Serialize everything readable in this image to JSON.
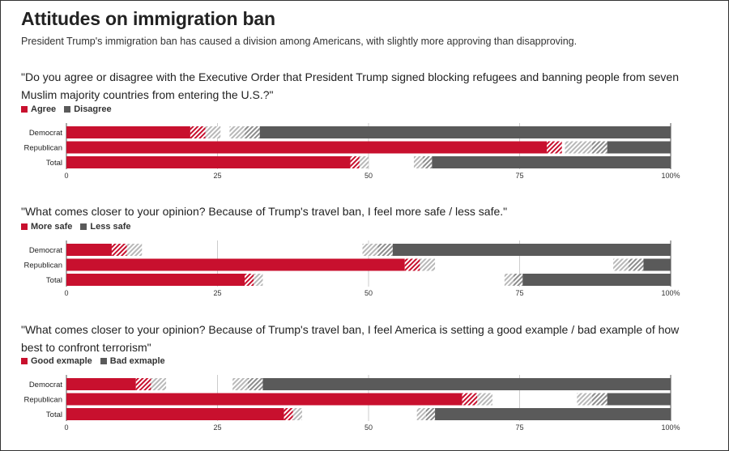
{
  "title": "Attitudes on immigration ban",
  "subtitle": "President Trump's immigration ban has caused a division among Americans, with slightly more approving than disapproving.",
  "colors": {
    "positive": "#c8102e",
    "negative": "#5a5a5a",
    "hatch_pos": "#c8102e",
    "hatch_neg": "#8c8c8c",
    "grid": "#cccccc"
  },
  "chart_data": [
    {
      "type": "bar",
      "stacked": true,
      "orientation": "horizontal",
      "title": "\"Do you agree or disagree with the Executive Order that President Trump signed blocking refugees and banning people from seven Muslim majority countries from entering the U.S.?\"",
      "legend": [
        "Agree",
        "Disagree"
      ],
      "categories": [
        "Democrat",
        "Republican",
        "Total"
      ],
      "xlim": [
        0,
        100
      ],
      "ticks": [
        "0",
        "25",
        "50",
        "75",
        "100%"
      ],
      "series": [
        {
          "name": "Agree",
          "values": [
            20.5,
            79.5,
            47
          ]
        },
        {
          "name": "Agree (hatched, dark)",
          "values": [
            2.5,
            2.5,
            1.5
          ]
        },
        {
          "name": "Agree (hatched, light)",
          "values": [
            2.5,
            0,
            1.5
          ]
        },
        {
          "name": "Disagree (hatched, light)",
          "values": [
            2.5,
            4.5,
            1.5
          ]
        },
        {
          "name": "Disagree (hatched, dark)",
          "values": [
            2.5,
            2.5,
            1.5
          ]
        },
        {
          "name": "Disagree",
          "values": [
            68,
            10.5,
            39.5
          ]
        }
      ]
    },
    {
      "type": "bar",
      "stacked": true,
      "orientation": "horizontal",
      "title": "\"What comes closer to your opinion? Because of Trump's travel ban, I feel more safe / less safe.\"",
      "legend": [
        "More safe",
        "Less safe"
      ],
      "categories": [
        "Democrat",
        "Republican",
        "Total"
      ],
      "xlim": [
        0,
        100
      ],
      "ticks": [
        "0",
        "25",
        "50",
        "75",
        "100%"
      ],
      "series": [
        {
          "name": "More safe",
          "values": [
            7.5,
            56,
            29.5
          ]
        },
        {
          "name": "More safe (hatched, dark)",
          "values": [
            2.5,
            2.5,
            1.5
          ]
        },
        {
          "name": "More safe (hatched, light)",
          "values": [
            2.5,
            2.5,
            1.5
          ]
        },
        {
          "name": "Less safe (hatched, light)",
          "values": [
            2.5,
            2.5,
            1.5
          ]
        },
        {
          "name": "Less safe (hatched, dark)",
          "values": [
            2.5,
            2.5,
            1.5
          ]
        },
        {
          "name": "Less safe",
          "values": [
            46,
            4.5,
            24.5
          ]
        }
      ]
    },
    {
      "type": "bar",
      "stacked": true,
      "orientation": "horizontal",
      "title": "\"What comes closer to your opinion? Because of Trump's travel ban, I feel America is setting a good example / bad example of how best to confront terrorism\"",
      "legend": [
        "Good exmaple",
        "Bad exmaple"
      ],
      "categories": [
        "Democrat",
        "Republican",
        "Total"
      ],
      "xlim": [
        0,
        100
      ],
      "ticks": [
        "0",
        "25",
        "50",
        "75",
        "100%"
      ],
      "series": [
        {
          "name": "Good exmaple",
          "values": [
            11.5,
            65.5,
            36
          ]
        },
        {
          "name": "Good exmaple (hatched, dark)",
          "values": [
            2.5,
            2.5,
            1.5
          ]
        },
        {
          "name": "Good exmaple (hatched, light)",
          "values": [
            2.5,
            2.5,
            1.5
          ]
        },
        {
          "name": "Bad exmaple (hatched, light)",
          "values": [
            2.5,
            2.5,
            1.5
          ]
        },
        {
          "name": "Bad exmaple (hatched, dark)",
          "values": [
            2.5,
            2.5,
            1.5
          ]
        },
        {
          "name": "Bad exmaple",
          "values": [
            67.5,
            10.5,
            39
          ]
        }
      ]
    }
  ]
}
